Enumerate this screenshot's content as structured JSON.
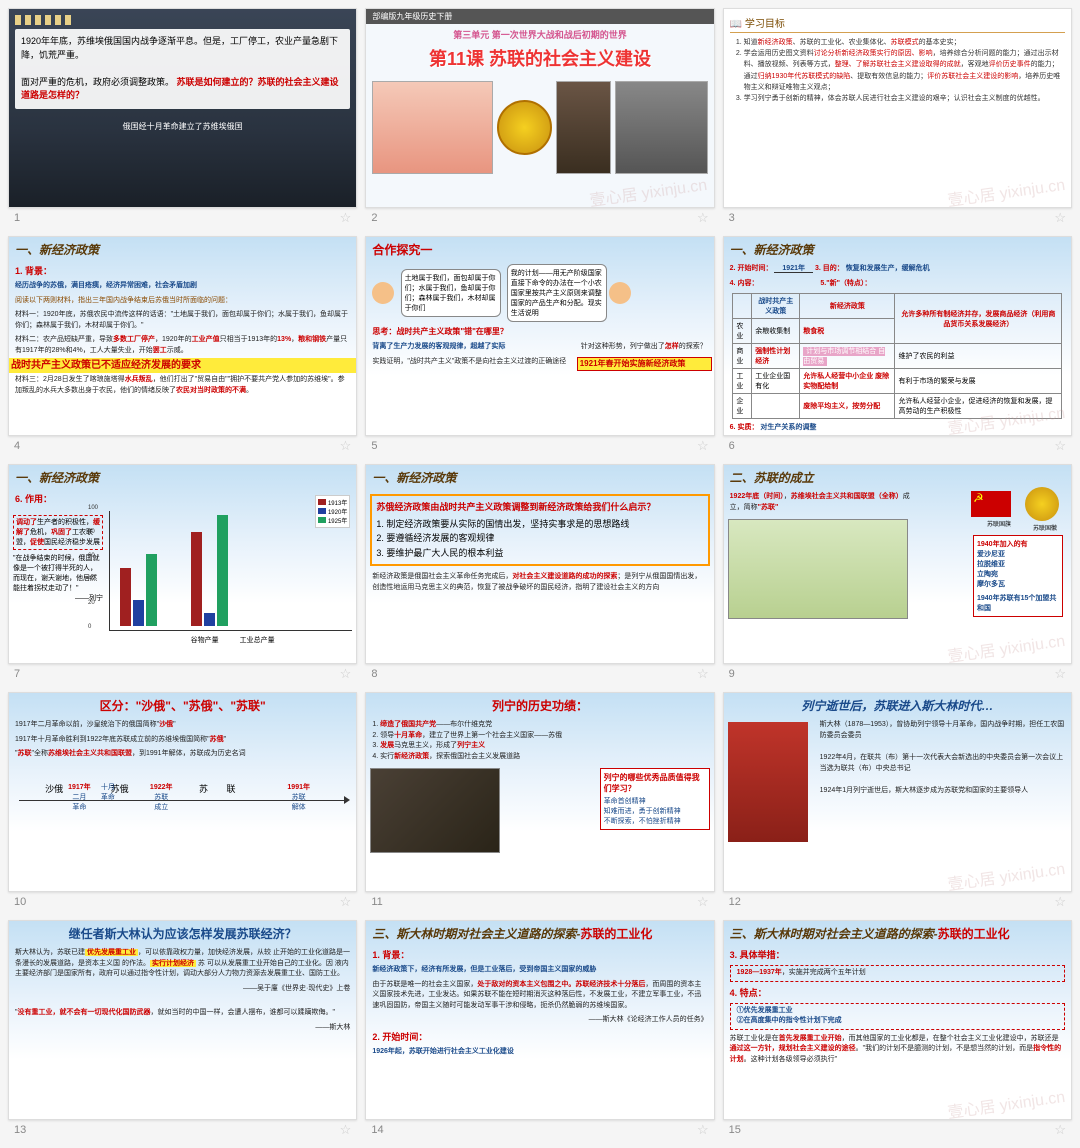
{
  "watermark": "壹心居 yixinju.cn",
  "slides": [
    {
      "n": 1,
      "s1_text": "1920年年底，苏维埃俄国国内战争逐渐平息。但是，工厂停工，农业产量急剧下降，饥荒严重。",
      "s1_text2": "面对严重的危机，政府必须调整政策。",
      "s1_q": "苏联是如何建立的？苏联的社会主义建设道路是怎样的？",
      "s1_cap": "俄国经十月革命建立了苏维埃俄国"
    },
    {
      "n": 2,
      "hdr": "部编版九年级历史下册",
      "unit": "第三单元 第一次世界大战和战后初期的世界",
      "title": "第11课 苏联的社会主义建设"
    },
    {
      "n": 3,
      "ttl": "学习目标",
      "items": [
        "知道<span class='hl'>新经济政策</span>、苏联的工业化、农业集体化、<span class='hl'>苏联模式</span>的基本史实；",
        "学会运用历史图文资料<span class='hl'>讨论分析新经济政策实行的原因、影响</span>，培养综合分析问题的能力；通过出示材料、播放视频、列表等方式，<span class='hl'>整理、了解苏联社会主义建设取得的成就</span>，客观地<span class='hl'>评价历史事件</span>的能力；通过<span class='hl'>归纳1930年代苏联模式的缺陷</span>、提取有效信息的能力；<span class='hl'>评价苏联社会主义建设的影响</span>，培养历史唯物主义和辩证唯物主义观点；",
        "学习列宁勇于创新的精神，体会苏联人民进行社会主义建设的艰辛；认识社会主义制度的优越性。"
      ]
    },
    {
      "n": 4,
      "ttl": "一、新经济政策",
      "sub": "1. 背景：",
      "p1": "经历战争的苏俄，满目疮痍，经济异常困难，社会矛盾加剧",
      "p2": "阅读以下两则材料，指出三年国内战争结束后苏俄当时所面临的问题：",
      "m1": "材料一：1920年底，苏俄农民中流传这样的话语：\"土地属于我们，面包却属于你们；水属于我们，鱼却属于你们；森林属于我们，木材却属于你们。\"",
      "m2": "材料二：农产品短缺严重，导致<span class='hl-red'>多数工厂停产</span>，1920年的<span class='hl-red'>工业产值</span>只相当于1913年的<span class='hl-red'>13%</span>，<span class='hl-red'>粮和钢铁</span>产量只有1917年的28%和4%，工人大量失业，开始<span class='hl-red'>罢工</span>示威。",
      "key": "战时共产主义政策已不适应经济发展的要求",
      "m3": "材料三：2月28日发生了喀琅施塔得<span class='hl-red'>水兵叛乱</span>，他们打出了\"贸易自由\"\"拥护不要共产党人参加的苏维埃\"。参加叛乱的水兵大多数出身于农民，他们的情绪反映了<span class='hl-red'>农民对当时政策的不满</span>。"
    },
    {
      "n": 5,
      "ttl": "合作探究一",
      "sb1": "土地属于我们，面包却属于你们；水属于我们，鱼却属于你们；森林属于我们，木材却属于你们",
      "sb2": "我的计划——用无产阶级国家直接下命令的办法在一个小农国家里按共产主义原则来调整国家的产品生产和分配。现实生活说明",
      "q1": "思考：战时共产主义政策\"错\"在哪里？",
      "a1": "背离了生产力发展的客观规律，超越了实际",
      "q2": "针对这种形势，列宁做出了<span class='hl-red'>怎样</span>的探索？",
      "r1": "实践证明，\"战时共产主义\"政策不是向社会主义过渡的正确途径",
      "r2": "1921年春开始实施新经济政策"
    },
    {
      "n": 6,
      "ttl": "一、新经济政策",
      "l1": "2. 开始时间：",
      "v1": "1921年",
      "l2": "3. 目的：",
      "v2": "恢复和发展生产，缓解危机",
      "l3": "4. 内容：",
      "l4": "5.\"新\"（特点）：",
      "th1": "战时共产主义政策",
      "th2": "新经济政策",
      "row_n": "农业",
      "c1a": "余粮收集制",
      "c1b": "粮食税",
      "f1": "允许<span class='hl-red'>多种所有制经济</span>并存，发展<span class='hl-red'>商品经济</span>（利用商品货币关系发展经济）",
      "row_b": "商业",
      "c2a": "强制性计划经济",
      "c2b": "计划与市场调节相结合 自由贸易",
      "f2": "维护了农民的利益",
      "row_i": "工业",
      "c3a": "工业企业国有化",
      "c3b": "允许私人经营中小企业 废除实物配给制",
      "f3": "有利于市场的繁荣与发展",
      "row_e": "企业",
      "c4a": "",
      "c4b": "废除平均主义，按劳分配",
      "f4": "允许私人经营小企业，促进经济的恢复和发展，提高劳动的生产积极性",
      "l5": "6. 实质：",
      "v5": "对生产关系的调整"
    },
    {
      "n": 7,
      "ttl": "一、新经济政策",
      "sub": "6. 作用：",
      "box": "<span class='hl-red'>调动了</span>生产者的积极性，<span class='hl-red'>缓解了</span>危机，<span class='hl-red'>巩固了</span>工农联盟，<span class='hl-red'>促使</span>国民经济稳步发展",
      "quote": "\"在战争结束的时候，俄国就像是一个被打得半死的人，而现在，谢天谢地，他居然能拄着拐杖走动了！\"",
      "author": "——列宁",
      "legend": [
        "1913年",
        "1920年",
        "1925年"
      ],
      "colors": [
        "#a02020",
        "#2040a0",
        "#20a060"
      ],
      "y": [
        20,
        40,
        60,
        80,
        100,
        120
      ],
      "groups": [
        "谷物产量",
        "工业总产量"
      ],
      "vals": [
        [
          62,
          28,
          78
        ],
        [
          102,
          15,
          120
        ]
      ]
    },
    {
      "n": 8,
      "ttl": "一、新经济政策",
      "q": "苏俄经济政策由战时共产主义政策调整到新经济政策给我们什么启示？",
      "items": [
        "制定经济政策要从实际的国情出发，坚持实事求是的思想路线",
        "要遵循经济发展的客观规律",
        "要维护最广大人民的根本利益"
      ],
      "foot": "新经济政策是俄国社会主义革命任务完成后，<span class='hl-red'>对社会主义建设道路的成功的探索</span>；是列宁从俄国国情出发，创造性地运用马克思主义的典范，恢复了被战争破坏的国民经济，指明了建设社会主义的方向"
    },
    {
      "n": 9,
      "ttl": "二、苏联的成立",
      "p": "<span class='hl-red'>1922年底（时间）</span>，<span class='hl-red'>苏维埃社会主义共和国联盟（全称）</span>成立，简称<span class='hl-red'>\"苏联\"</span>",
      "flag_lbl": "苏联国旗",
      "emb_lbl": "苏联国徽",
      "box_t": "1940年加入的有",
      "box_items": [
        "爱沙尼亚",
        "拉脱维亚",
        "立陶宛",
        "摩尔多瓦"
      ],
      "box_f": "1940年苏联有15个加盟共和国"
    },
    {
      "n": 10,
      "ttl": "区分：\"沙俄\"、\"苏俄\"、\"苏联\"",
      "p1": "1917年二月革命以前，沙皇统治下的俄国简称\"<span class='hl-red'>沙俄</span>\"",
      "p2": "1917年十月革命胜利到1922年底苏联成立前的苏维埃俄国简称\"<span class='hl-red'>苏俄</span>\"",
      "p3": "\"<span class='hl-red'>苏联</span>\"全称<span class='hl-red'>苏维埃社会主义共和国联盟</span>，到1991年解体，苏联成为历史名词",
      "labels": [
        "沙俄",
        "苏俄",
        "苏  联"
      ],
      "yrs": [
        "1917年",
        "1922年",
        "1991年"
      ],
      "evts": [
        [
          "二月",
          "革命"
        ],
        [
          "十月",
          "革命"
        ],
        [
          "苏联",
          "成立"
        ],
        [
          "苏联",
          "解体"
        ]
      ]
    },
    {
      "n": 11,
      "ttl": "列宁的历史功绩：",
      "items": [
        "<span class='hl-red'>缔造了俄国共产党</span>——布尔什维克党",
        "领导<span class='hl-red'>十月革命</span>，建立了世界上第一个社会主义国家——苏俄",
        "<span class='hl-red'>发展</span>马克思主义，形成了<span class='hl-red'>列宁主义</span>",
        "实行<span class='hl-red'>新经济政策</span>，探索俄国社会主义发展道路"
      ],
      "cap": "列宁（1870—1924）\n1924年1月逝世，终年53岁",
      "q": "列宁的哪些优秀品质值得我们学习？",
      "a": "革命首创精神\n知难而进，勇于创新精神\n不断探索，不怕挫折精神"
    },
    {
      "n": 12,
      "ttl": "列宁逝世后，苏联进入斯大林时代…",
      "p1": "斯大林（1878—1953），曾协助列宁领导十月革命，国内战争时期，担任工农国防委员会委员",
      "p2": "1922年4月，在联共（布）第十一次代表大会新选出的中央委员会第一次会议上当选为联共（布）中央总书记",
      "p3": "1924年1月列宁逝世后，斯大林逐步成为苏联党和国家的主要领导人"
    },
    {
      "n": 13,
      "ttl": "继任者斯大林认为应该怎样发展苏联经济？",
      "p1": "斯大林认为，苏联已建<span class='hl-y hl-red'>优先发展重工业</span>，可以依靠政权力量，加快经济发展，从较  止开始的工业化道路是一条漫长的发展道路，是资本主义国  的作法。<span class='hl-y hl-red'>实行计划经济</span>   苏  可以从发展重工业开始自己的工业化。因  液内主要经济部门是国家所有，政府可以通过指令性计划，调动大部分人力物力资源去发展重工业、国防工业。",
      "src1": "——吴于廑《世界史·现代史》上卷",
      "p2": "\"<span class='hl-red'>没有重工业，就不会有一切现代化国防武器</span>，就如当时的中国一样，会遭人摆布，谁都可以蹂躏欺侮。\"",
      "src2": "——斯大林"
    },
    {
      "n": 14,
      "ttl": "三、斯大林时期对社会主义道路的探索-",
      "ttl2": "苏联的工业化",
      "sub": "1. 背景：",
      "p1": "新经济政策下，经济有所发展，但是工业落后，受到帝国主义国家的威胁",
      "p2": "由于苏联是唯一的社会主义国家，<span class='hl-red'>处于敌对的资本主义包围之中。苏联经济技术十分落后</span>，而周围的资本主义国家技术先进，工业发达。如果苏联不能在短时期消灭这种落后性，不发展工业，不建立军事工业，不迅速巩固国防，帝国主义随时可能发动军事干涉和侵略，扼杀仍然脆弱的苏维埃国家。",
      "src": "——斯大林《论经济工作人员的任务》",
      "sub2": "2. 开始时间：",
      "p3": "1926年起，苏联开始进行社会主义工业化建设"
    },
    {
      "n": 15,
      "ttl": "三、斯大林时期对社会主义道路的探索-",
      "ttl2": "苏联的工业化",
      "sub": "3. 具体举措：",
      "p1": "<span class='hl-red'>1928—1937年</span>，实施并完成两个五年计划",
      "sub2": "4. 特点：",
      "i1": "①优先发展重工业",
      "i2": "②在高度集中的指令性计划下完成",
      "p2": "苏联工业化是在<span class='hl-red'>首先发展重工业开始</span>，而其他国家的工业化都是，在整个社会主义工业化建设中，苏联还是<span class='hl-red'>通过这一方针，规划社会主义建设的途径</span>。\"我们的计划不是臆测的计划，不是想当然的计划，而是<span class='hl-red'>指令性的计划</span>。这种计划各级领导必须执行\""
    }
  ]
}
